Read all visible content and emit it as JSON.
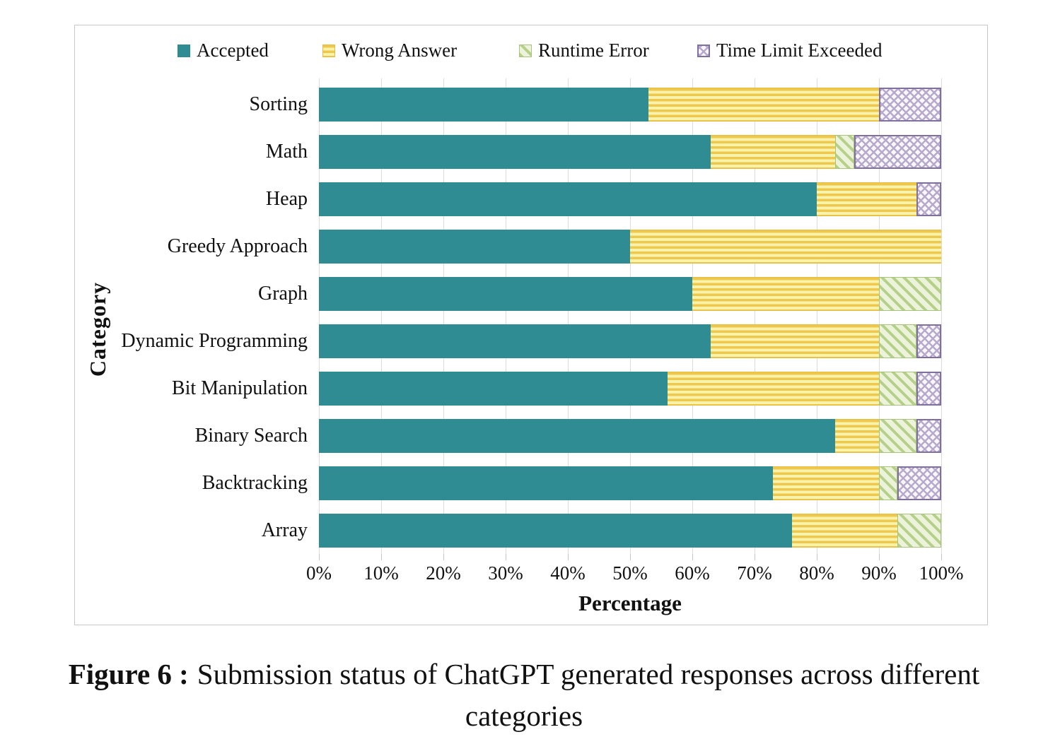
{
  "figure": {
    "caption_label": "Figure 6 :",
    "caption_text": "Submission status of ChatGPT generated responses across different categories"
  },
  "chart_data": {
    "type": "bar",
    "orientation": "horizontal",
    "stacked": true,
    "grid": true,
    "legend_position": "top",
    "xlabel": "Percentage",
    "ylabel": "Category",
    "xlim": [
      0,
      100
    ],
    "x_ticks": [
      "0%",
      "10%",
      "20%",
      "30%",
      "40%",
      "50%",
      "60%",
      "70%",
      "80%",
      "90%",
      "100%"
    ],
    "categories": [
      "Sorting",
      "Math",
      "Heap",
      "Greedy Approach",
      "Graph",
      "Dynamic Programming",
      "Bit Manipulation",
      "Binary Search",
      "Backtracking",
      "Array"
    ],
    "series": [
      {
        "name": "Accepted",
        "color": "#2e8c92",
        "pattern": "solid",
        "values": [
          53,
          63,
          80,
          50,
          60,
          63,
          56,
          83,
          73,
          76
        ]
      },
      {
        "name": "Wrong Answer",
        "color": "#eec84c",
        "pattern": "horizontal-stripes",
        "values": [
          37,
          20,
          16,
          50,
          30,
          27,
          34,
          7,
          17,
          17
        ]
      },
      {
        "name": "Runtime Error",
        "color": "#b5d088",
        "pattern": "diagonal-stripes",
        "values": [
          0,
          3,
          0,
          0,
          10,
          6,
          6,
          6,
          3,
          7
        ]
      },
      {
        "name": "Time Limit Exceeded",
        "color": "#b7a9ce",
        "pattern": "crosshatch",
        "values": [
          10,
          14,
          4,
          0,
          0,
          4,
          4,
          4,
          7,
          0
        ]
      }
    ]
  }
}
